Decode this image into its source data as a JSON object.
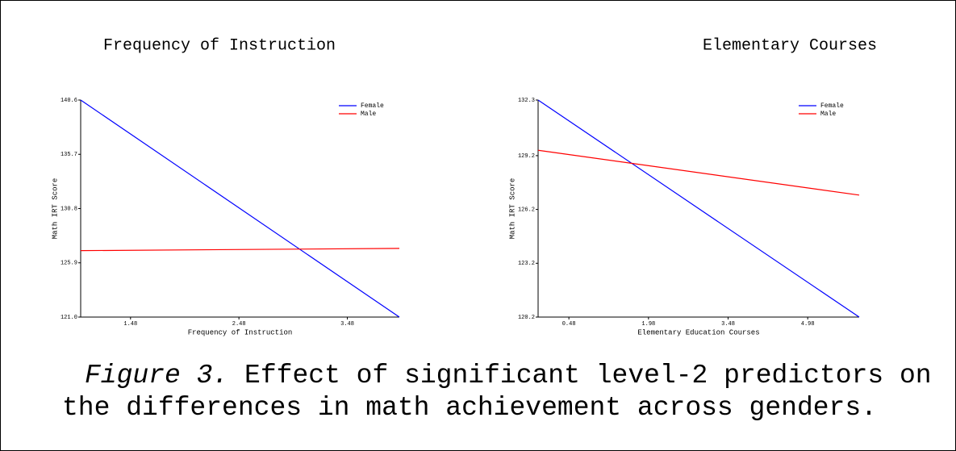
{
  "chart_data": [
    {
      "type": "line",
      "title": "Frequency of Instruction",
      "x_label": "Frequency of Instruction",
      "y_label": "Math IRT Score",
      "x": [
        1.02,
        3.96
      ],
      "xlim": [
        1.02,
        3.96
      ],
      "xticks": [
        1.48,
        2.48,
        3.48
      ],
      "ylim": [
        121.0,
        140.6
      ],
      "yticks": [
        {
          "value": 121.0,
          "label": "121.0"
        },
        125.9,
        130.8,
        135.7,
        140.6
      ],
      "legend": "upper right",
      "series": [
        {
          "name": "Female",
          "color": "#0000ff",
          "values": [
            140.6,
            121.0
          ]
        },
        {
          "name": "Male",
          "color": "#ff0000",
          "values": [
            127.0,
            127.2
          ]
        }
      ]
    },
    {
      "type": "line",
      "title": "Elementary Courses",
      "x_label": "Elementary Education Courses",
      "y_label": "Math IRT Score",
      "x": [
        -0.1,
        5.95
      ],
      "xlim": [
        -0.1,
        5.95
      ],
      "xticks": [
        0.48,
        1.98,
        3.48,
        4.98
      ],
      "ylim": [
        120.2,
        132.3
      ],
      "yticks": [
        120.2,
        123.2,
        126.2,
        129.2,
        132.3
      ],
      "legend": "upper right",
      "series": [
        {
          "name": "Female",
          "color": "#0000ff",
          "values": [
            132.3,
            120.2
          ]
        },
        {
          "name": "Male",
          "color": "#ff0000",
          "values": [
            129.5,
            127.0
          ]
        }
      ]
    }
  ],
  "caption": {
    "label": "Figure 3.",
    "text": "Effect of significant level-2 predictors on the differences in math achievement across genders."
  }
}
